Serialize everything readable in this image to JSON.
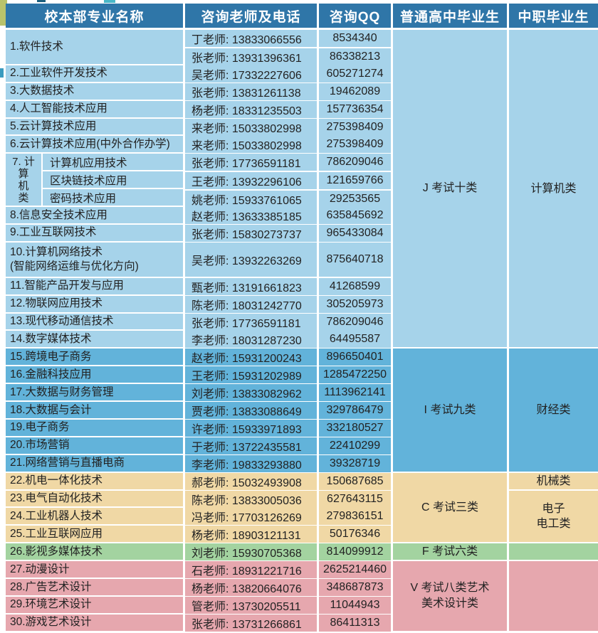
{
  "columns": [
    "校本部专业名称",
    "咨询老师及电话",
    "咨询QQ",
    "普通高中毕业生",
    "中职毕业生"
  ],
  "colors": {
    "header": "#2f76a8",
    "header_text": "#ffffff",
    "text": "#222222",
    "group_J": "#a6d3ea",
    "group_I": "#62b3da",
    "group_C": "#f0d8a5",
    "group_F": "#a3d3a0",
    "group_V": "#e6a7ae"
  },
  "majors": [
    {
      "group": "J",
      "name": "1.软件技术",
      "teachers": [
        {
          "contact": "丁老师: 13833066556",
          "qq": "8534340"
        },
        {
          "contact": "张老师: 13931396361",
          "qq": "86338213"
        }
      ]
    },
    {
      "group": "J",
      "name": "2.工业软件开发技术",
      "teachers": [
        {
          "contact": "吴老师: 17332227606",
          "qq": "605271274"
        }
      ]
    },
    {
      "group": "J",
      "name": "3.大数据技术",
      "teachers": [
        {
          "contact": "张老师: 13831261138",
          "qq": "19462089"
        }
      ]
    },
    {
      "group": "J",
      "name": "4.人工智能技术应用",
      "teachers": [
        {
          "contact": "杨老师: 18331235503",
          "qq": "157736354"
        }
      ]
    },
    {
      "group": "J",
      "name": "5.云计算技术应用",
      "teachers": [
        {
          "contact": "来老师: 15033802998",
          "qq": "275398409"
        }
      ]
    },
    {
      "group": "J",
      "name": "6.云计算技术应用(中外合作办学)",
      "teachers": [
        {
          "contact": "来老师: 15033802998",
          "qq": "275398409"
        }
      ]
    },
    {
      "group": "J",
      "vertical_label": "7.计算机类",
      "vertical_label_lines": [
        "7. 计",
        "算",
        "机",
        "类"
      ],
      "sub_majors": [
        "计算机应用技术",
        "区块链技术应用",
        "密码技术应用"
      ],
      "teachers": [
        {
          "contact": "张老师: 17736591181",
          "qq": "786209046"
        },
        {
          "contact": "王老师: 13932296106",
          "qq": "121659766"
        },
        {
          "contact": "姚老师: 15933761065",
          "qq": "29253565"
        }
      ]
    },
    {
      "group": "J",
      "name": "8.信息安全技术应用",
      "teachers": [
        {
          "contact": "赵老师: 13633385185",
          "qq": "635845692"
        }
      ]
    },
    {
      "group": "J",
      "name": "9.工业互联网技术",
      "teachers": [
        {
          "contact": "张老师: 15830273737",
          "qq": "965433084"
        }
      ]
    },
    {
      "group": "J",
      "name_lines": [
        "10.计算机网络技术",
        "(智能网络运维与优化方向)"
      ],
      "teachers": [
        {
          "contact": "吴老师: 13932263269",
          "qq": "875640718"
        }
      ]
    },
    {
      "group": "J",
      "name": "11.智能产品开发与应用",
      "teachers": [
        {
          "contact": "甄老师: 13191661823",
          "qq": "41268599"
        }
      ]
    },
    {
      "group": "J",
      "name": "12.物联网应用技术",
      "teachers": [
        {
          "contact": "陈老师: 18031242770",
          "qq": "305205973"
        }
      ]
    },
    {
      "group": "J",
      "name": "13.现代移动通信技术",
      "teachers": [
        {
          "contact": "张老师: 17736591181",
          "qq": "786209046"
        }
      ]
    },
    {
      "group": "J",
      "name": "14.数字媒体技术",
      "teachers": [
        {
          "contact": "李老师: 18031287230",
          "qq": "64495587"
        }
      ]
    },
    {
      "group": "I",
      "name": "15.跨境电子商务",
      "teachers": [
        {
          "contact": "赵老师: 15931200243",
          "qq": "896650401"
        }
      ]
    },
    {
      "group": "I",
      "name": "16.金融科技应用",
      "teachers": [
        {
          "contact": "王老师: 15931202989",
          "qq": "1285472250"
        }
      ]
    },
    {
      "group": "I",
      "name": "17.大数据与财务管理",
      "teachers": [
        {
          "contact": "刘老师: 13833082962",
          "qq": "1113962141"
        }
      ]
    },
    {
      "group": "I",
      "name": "18.大数据与会计",
      "teachers": [
        {
          "contact": "贾老师: 13833088649",
          "qq": "329786479"
        }
      ]
    },
    {
      "group": "I",
      "name": "19.电子商务",
      "teachers": [
        {
          "contact": "许老师: 15933971893",
          "qq": "332180527"
        }
      ]
    },
    {
      "group": "I",
      "name": "20.市场营销",
      "teachers": [
        {
          "contact": "于老师: 13722435581",
          "qq": "22410299"
        }
      ]
    },
    {
      "group": "I",
      "name": "21.网络营销与直播电商",
      "teachers": [
        {
          "contact": "李老师: 19833293880",
          "qq": "39328719"
        }
      ]
    },
    {
      "group": "C",
      "name": "22.机电一体化技术",
      "teachers": [
        {
          "contact": "郝老师: 15032493908",
          "qq": "150687685"
        }
      ]
    },
    {
      "group": "C",
      "name": "23.电气自动化技术",
      "teachers": [
        {
          "contact": "陈老师: 13833005036",
          "qq": "627643115"
        }
      ]
    },
    {
      "group": "C",
      "name": "24.工业机器人技术",
      "teachers": [
        {
          "contact": "冯老师: 17703126269",
          "qq": "279836151"
        }
      ]
    },
    {
      "group": "C",
      "name": "25.工业互联网应用",
      "teachers": [
        {
          "contact": "杨老师: 18903121131",
          "qq": "50176346"
        }
      ]
    },
    {
      "group": "F",
      "name": "26.影视多媒体技术",
      "teachers": [
        {
          "contact": "刘老师: 15930705368",
          "qq": "814099912"
        }
      ]
    },
    {
      "group": "V",
      "name": "27.动漫设计",
      "teachers": [
        {
          "contact": "石老师: 18931221716",
          "qq": "2625214460"
        }
      ]
    },
    {
      "group": "V",
      "name": "28.广告艺术设计",
      "teachers": [
        {
          "contact": "杨老师: 13820664076",
          "qq": "348687873"
        }
      ]
    },
    {
      "group": "V",
      "name": "29.环境艺术设计",
      "teachers": [
        {
          "contact": "管老师: 13730205511",
          "qq": "11044943"
        }
      ]
    },
    {
      "group": "V",
      "name": "30.游戏艺术设计",
      "teachers": [
        {
          "contact": "张老师: 13731266861",
          "qq": "86411313"
        }
      ]
    }
  ],
  "exam_groups": [
    {
      "id": "J",
      "exam_lines": [
        "J 考试十类"
      ],
      "vocational_cells": [
        {
          "lines": [
            "计算机类"
          ],
          "line_span": 18
        }
      ]
    },
    {
      "id": "I",
      "exam_lines": [
        "I 考试九类"
      ],
      "vocational_cells": [
        {
          "lines": [
            "财经类"
          ],
          "line_span": 7
        }
      ]
    },
    {
      "id": "C",
      "exam_lines": [
        "C 考试三类"
      ],
      "vocational_cells": [
        {
          "lines": [
            "机械类"
          ],
          "line_span": 1
        },
        {
          "lines": [
            "电子",
            "电工类"
          ],
          "line_span": 3
        }
      ]
    },
    {
      "id": "F",
      "exam_lines": [
        "F 考试六类"
      ],
      "vocational_cells": [
        {
          "lines": [
            ""
          ],
          "line_span": 1
        }
      ]
    },
    {
      "id": "V",
      "exam_lines": [
        "V 考试八类艺术",
        "美术设计类"
      ],
      "vocational_cells": [
        {
          "lines": [
            ""
          ],
          "line_span": 4
        }
      ]
    }
  ]
}
